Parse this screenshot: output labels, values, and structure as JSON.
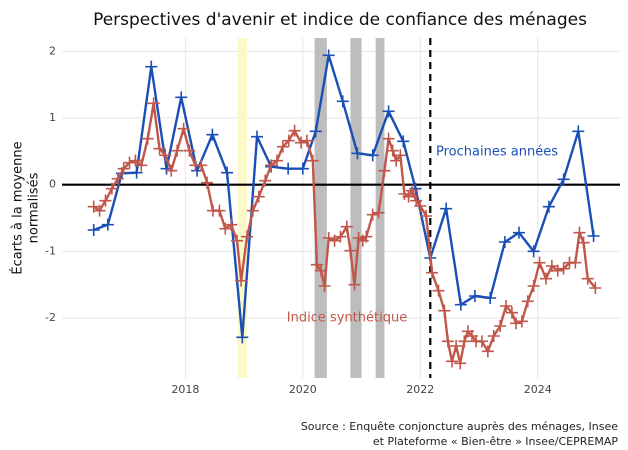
{
  "chart_data": {
    "type": "line",
    "title": "Perspectives d'avenir et indice de confiance des ménages",
    "y_label": [
      "Écarts à la moyenne",
      "normalisés"
    ],
    "source": [
      "Source : Enquête conjoncture auprès des ménages, Insee",
      "et Plateforme « Bien-être » Insee/CEPREMAP"
    ],
    "xlim": [
      2015.9,
      2025.4
    ],
    "ylim": [
      -2.9,
      2.2
    ],
    "xticks": [
      2018,
      2020,
      2022,
      2024
    ],
    "yticks": [
      -2,
      -1,
      0,
      1,
      2
    ],
    "grid": true,
    "zero_line": true,
    "bands": [
      {
        "x": [
          2018.89,
          2019.05
        ],
        "color": "#fdf8c8"
      },
      {
        "x": [
          2020.2,
          2020.41
        ],
        "color": "#bdbdbd"
      },
      {
        "x": [
          2020.81,
          2021.0
        ],
        "color": "#bdbdbd"
      },
      {
        "x": [
          2021.24,
          2021.39
        ],
        "color": "#bdbdbd"
      }
    ],
    "vlines": [
      2022.17
    ],
    "series": [
      {
        "name": "Prochaines années",
        "color": "#1a4fb5",
        "x": [
          2016.44,
          2016.68,
          2016.92,
          2017.17,
          2017.42,
          2017.68,
          2017.93,
          2018.2,
          2018.46,
          2018.71,
          2018.97,
          2019.22,
          2019.46,
          2019.75,
          2020.0,
          2020.22,
          2020.44,
          2020.68,
          2020.93,
          2021.19,
          2021.46,
          2021.71,
          2021.92,
          2022.17,
          2022.44,
          2022.69,
          2022.93,
          2023.19,
          2023.44,
          2023.68,
          2023.93,
          2024.19,
          2024.44,
          2024.69,
          2024.95
        ],
        "values": [
          -0.68,
          -0.6,
          0.17,
          0.18,
          1.77,
          0.24,
          1.31,
          0.21,
          0.75,
          0.18,
          -2.29,
          0.72,
          0.27,
          0.24,
          0.24,
          0.8,
          1.94,
          1.25,
          0.47,
          0.44,
          1.1,
          0.65,
          -0.06,
          -1.1,
          -0.36,
          -1.8,
          -1.67,
          -1.7,
          -0.86,
          -0.72,
          -1.0,
          -0.33,
          0.08,
          0.8,
          -0.77
        ]
      },
      {
        "name": "Indice synthétique",
        "color": "#c0574a",
        "x": [
          2016.44,
          2016.54,
          2016.64,
          2016.75,
          2016.85,
          2016.95,
          2017.05,
          2017.15,
          2017.25,
          2017.36,
          2017.46,
          2017.56,
          2017.66,
          2017.76,
          2017.86,
          2017.97,
          2018.07,
          2018.17,
          2018.27,
          2018.37,
          2018.47,
          2018.58,
          2018.68,
          2018.78,
          2018.88,
          2018.95,
          2019.05,
          2019.15,
          2019.25,
          2019.36,
          2019.46,
          2019.56,
          2019.66,
          2019.76,
          2019.86,
          2019.97,
          2020.07,
          2020.17,
          2020.24,
          2020.31,
          2020.37,
          2020.44,
          2020.54,
          2020.64,
          2020.75,
          2020.81,
          2020.88,
          2020.95,
          2021.02,
          2021.08,
          2021.19,
          2021.29,
          2021.39,
          2021.46,
          2021.53,
          2021.59,
          2021.66,
          2021.73,
          2021.8,
          2021.86,
          2021.93,
          2022.0,
          2022.1,
          2022.2,
          2022.31,
          2022.41,
          2022.47,
          2022.54,
          2022.61,
          2022.68,
          2022.75,
          2022.81,
          2022.88,
          2022.95,
          2023.05,
          2023.15,
          2023.25,
          2023.36,
          2023.46,
          2023.56,
          2023.63,
          2023.73,
          2023.83,
          2023.93,
          2024.03,
          2024.14,
          2024.24,
          2024.34,
          2024.44,
          2024.54,
          2024.64,
          2024.71,
          2024.78,
          2024.85,
          2024.98
        ],
        "values": [
          -0.33,
          -0.39,
          -0.24,
          -0.06,
          0.09,
          0.24,
          0.33,
          0.36,
          0.29,
          0.69,
          1.22,
          0.54,
          0.44,
          0.21,
          0.51,
          0.84,
          0.51,
          0.29,
          0.29,
          0.03,
          -0.39,
          -0.39,
          -0.66,
          -0.6,
          -0.84,
          -1.44,
          -0.78,
          -0.39,
          -0.18,
          0.06,
          0.29,
          0.36,
          0.57,
          0.66,
          0.81,
          0.63,
          0.66,
          0.36,
          -1.2,
          -1.29,
          -1.52,
          -0.8,
          -0.84,
          -0.78,
          -0.63,
          -0.99,
          -1.5,
          -0.8,
          -0.84,
          -0.78,
          -0.45,
          -0.42,
          0.21,
          0.69,
          0.51,
          0.36,
          0.44,
          -0.14,
          -0.18,
          -0.09,
          -0.24,
          -0.32,
          -0.47,
          -1.32,
          -1.59,
          -1.89,
          -2.35,
          -2.65,
          -2.42,
          -2.68,
          -2.35,
          -2.2,
          -2.27,
          -2.35,
          -2.35,
          -2.5,
          -2.27,
          -2.12,
          -1.82,
          -1.92,
          -2.08,
          -2.05,
          -1.75,
          -1.52,
          -1.17,
          -1.41,
          -1.22,
          -1.29,
          -1.26,
          -1.17,
          -1.17,
          -0.72,
          -0.87,
          -1.41,
          -1.55
        ]
      }
    ]
  }
}
